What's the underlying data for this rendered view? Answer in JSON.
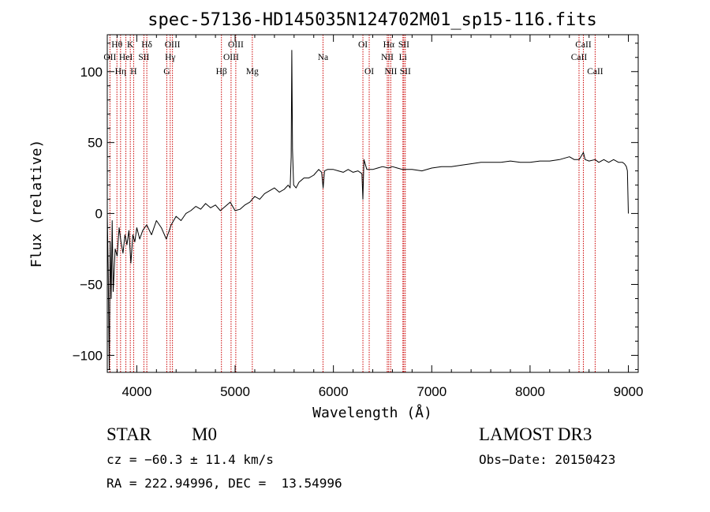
{
  "chart_data": {
    "type": "line",
    "title": "spec-57136-HD145035N124702M01_sp15-116.fits",
    "xlabel": "Wavelength (Å)",
    "ylabel": "Flux (relative)",
    "xlim": [
      3700,
      9100
    ],
    "ylim": [
      -112,
      126
    ],
    "x_ticks": [
      4000,
      5000,
      6000,
      7000,
      8000,
      9000
    ],
    "y_ticks": [
      -100,
      -50,
      0,
      50,
      100
    ],
    "grid": false,
    "line_color": "#000000",
    "marker_color": "#cc0000",
    "series": [
      {
        "x": [
          3700,
          3710,
          3720,
          3730,
          3740,
          3750,
          3760,
          3780,
          3800,
          3820,
          3840,
          3860,
          3880,
          3900,
          3920,
          3940,
          3960,
          3980,
          4000,
          4030,
          4060,
          4100,
          4150,
          4200,
          4250,
          4300,
          4350,
          4400,
          4450,
          4500,
          4550,
          4600,
          4650,
          4700,
          4750,
          4800,
          4850,
          4900,
          4950,
          5000,
          5050,
          5100,
          5150,
          5200,
          5250,
          5300,
          5350,
          5400,
          5450,
          5500,
          5540,
          5560,
          5570,
          5577,
          5584,
          5595,
          5620,
          5650,
          5700,
          5750,
          5800,
          5850,
          5880,
          5895,
          5910,
          5940,
          6000,
          6050,
          6100,
          6150,
          6200,
          6250,
          6290,
          6300,
          6310,
          6340,
          6400,
          6450,
          6500,
          6560,
          6600,
          6650,
          6700,
          6750,
          6800,
          6900,
          7000,
          7100,
          7200,
          7300,
          7400,
          7500,
          7600,
          7700,
          7800,
          7900,
          8000,
          8100,
          8200,
          8300,
          8400,
          8450,
          8500,
          8542,
          8560,
          8600,
          8662,
          8700,
          8750,
          8800,
          8850,
          8900,
          8940,
          8960,
          8980,
          8990,
          9000
        ],
        "y": [
          0,
          -40,
          -110,
          -20,
          -60,
          -5,
          -55,
          -25,
          -30,
          -10,
          -20,
          -28,
          -15,
          -22,
          -12,
          -35,
          -15,
          -20,
          -10,
          -18,
          -12,
          -8,
          -15,
          -5,
          -10,
          -18,
          -8,
          -2,
          -5,
          0,
          2,
          5,
          3,
          7,
          4,
          6,
          2,
          5,
          8,
          2,
          3,
          6,
          8,
          12,
          10,
          14,
          16,
          18,
          15,
          17,
          20,
          18,
          40,
          115,
          45,
          20,
          18,
          22,
          25,
          25,
          27,
          31,
          29,
          18,
          30,
          31,
          31,
          30,
          29,
          31,
          29,
          30,
          28,
          10,
          38,
          31,
          31,
          32,
          33,
          32,
          33,
          32,
          31,
          31,
          31,
          30,
          32,
          33,
          33,
          34,
          35,
          36,
          36,
          36,
          37,
          36,
          36,
          37,
          37,
          38,
          40,
          38,
          38,
          43,
          38,
          37,
          38,
          36,
          38,
          36,
          38,
          36,
          36,
          35,
          33,
          30,
          0
        ]
      }
    ],
    "lines": [
      {
        "label": "OII",
        "x": 3727,
        "row": 1
      },
      {
        "label": "Hθ",
        "x": 3798,
        "row": 0
      },
      {
        "label": "Hη",
        "x": 3835,
        "row": 2
      },
      {
        "label": "HeI",
        "x": 3889,
        "row": 1
      },
      {
        "label": "K",
        "x": 3934,
        "row": 0
      },
      {
        "label": "H",
        "x": 3968,
        "row": 2
      },
      {
        "label": "SII",
        "x": 4072,
        "row": 1
      },
      {
        "label": "Hδ",
        "x": 4102,
        "row": 0
      },
      {
        "label": "G",
        "x": 4305,
        "row": 2
      },
      {
        "label": "Hγ",
        "x": 4340,
        "row": 1
      },
      {
        "label": "OIII",
        "x": 4363,
        "row": 0
      },
      {
        "label": "Hβ",
        "x": 4861,
        "row": 2
      },
      {
        "label": "OIII",
        "x": 4959,
        "row": 1
      },
      {
        "label": "OIII",
        "x": 5007,
        "row": 0
      },
      {
        "label": "Mg",
        "x": 5175,
        "row": 2
      },
      {
        "label": "Na",
        "x": 5894,
        "row": 1
      },
      {
        "label": "OI",
        "x": 6300,
        "row": 0
      },
      {
        "label": "OI",
        "x": 6364,
        "row": 2
      },
      {
        "label": "NII",
        "x": 6548,
        "row": 1
      },
      {
        "label": "Hα",
        "x": 6563,
        "row": 0
      },
      {
        "label": "NII",
        "x": 6583,
        "row": 2
      },
      {
        "label": "Li",
        "x": 6707,
        "row": 1
      },
      {
        "label": "SII",
        "x": 6716,
        "row": 0
      },
      {
        "label": "SII",
        "x": 6731,
        "row": 2
      },
      {
        "label": "CaII",
        "x": 8498,
        "row": 1
      },
      {
        "label": "CaII",
        "x": 8542,
        "row": 0
      },
      {
        "label": "CaII",
        "x": 8662,
        "row": 2
      }
    ]
  },
  "info": {
    "object_class": "STAR",
    "subclass": "M0",
    "survey": "LAMOST DR3",
    "cz": "cz = −60.3 ± 11.4 km/s",
    "obs_date": "Obs−Date: 20150423",
    "coords": "RA = 222.94996, DEC =  13.54996"
  }
}
